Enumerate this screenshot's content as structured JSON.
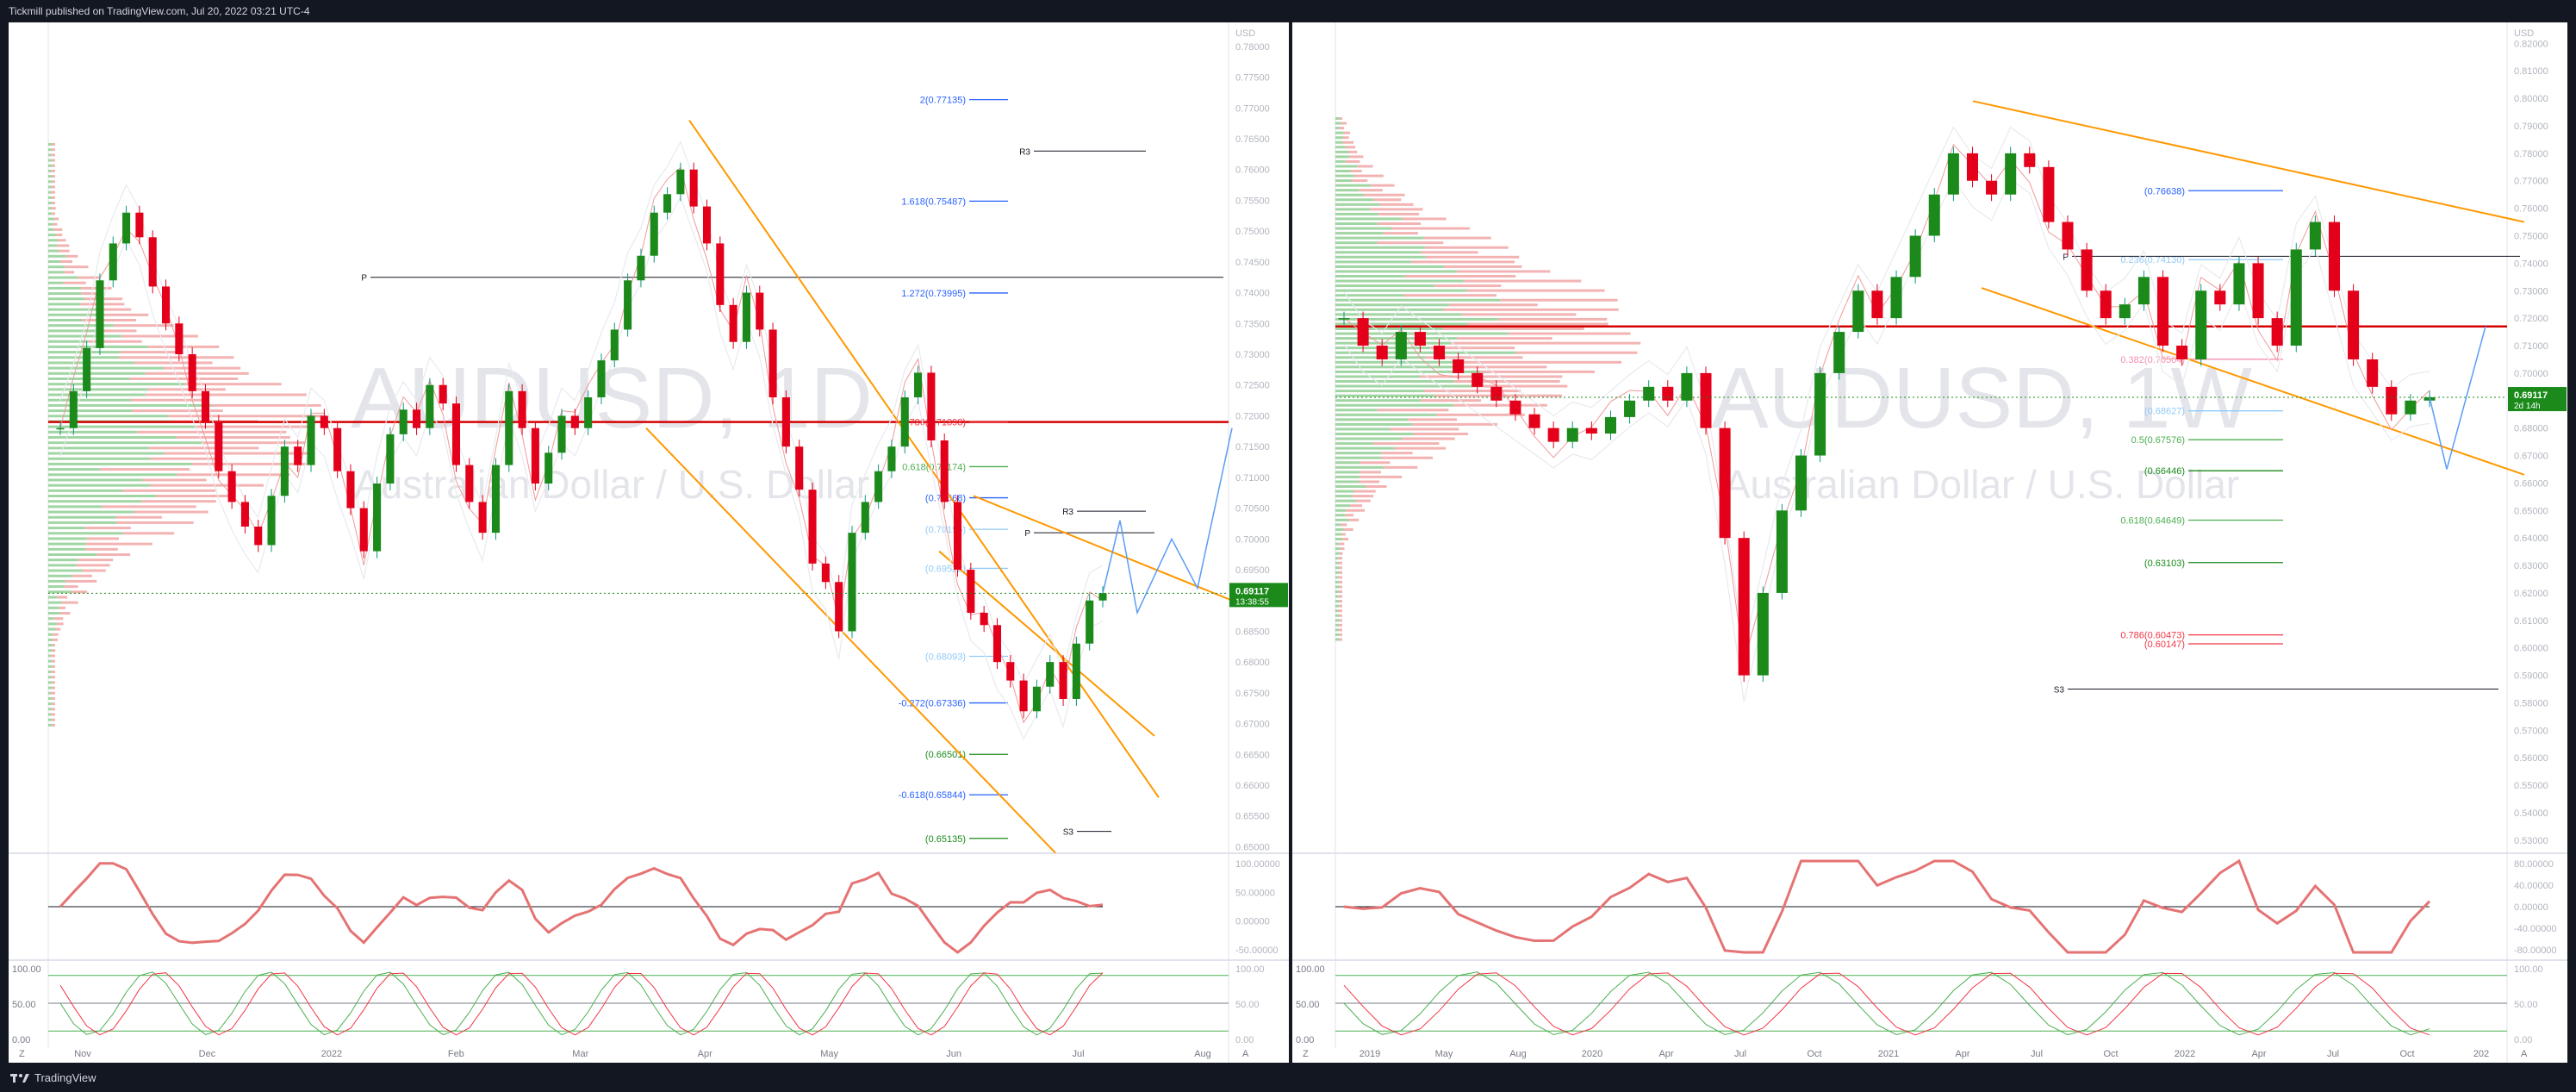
{
  "header": {
    "publisher_text": "Tickmill published on TradingView.com, Jul 20, 2022 03:21 UTC-4"
  },
  "footer": {
    "brand": "TradingView"
  },
  "chart_data": [
    {
      "type": "candlestick",
      "panel": "left",
      "watermark_symbol": "AUDUSD, 1D",
      "watermark_name": "Australian Dollar / U.S. Dollar",
      "currency": "USD",
      "y_ticks": [
        "0.78000",
        "0.77500",
        "0.77000",
        "0.76500",
        "0.76000",
        "0.75500",
        "0.75000",
        "0.74500",
        "0.74000",
        "0.73500",
        "0.73000",
        "0.72500",
        "0.72000",
        "0.71500",
        "0.71000",
        "0.70500",
        "0.70000",
        "0.69500",
        "0.69000",
        "0.68500",
        "0.68000",
        "0.67500",
        "0.67000",
        "0.66500",
        "0.66000",
        "0.65500",
        "0.65000"
      ],
      "ylim": [
        0.6495,
        0.7825
      ],
      "x_ticks": [
        "Nov",
        "Dec",
        "2022",
        "Feb",
        "Mar",
        "Apr",
        "May",
        "Jun",
        "Jul",
        "Aug"
      ],
      "last_price": "0.69117",
      "countdown": "13:38:55",
      "fib_levels": [
        {
          "label": "2(0.77135)",
          "value": 0.77135,
          "color": "#2962ff"
        },
        {
          "label": "1.618(0.75487)",
          "value": 0.75487,
          "color": "#2962ff"
        },
        {
          "label": "1.272(0.73995)",
          "value": 0.73995,
          "color": "#2962ff"
        },
        {
          "label": "0.786(0.71898)",
          "value": 0.71898,
          "color": "#f23645"
        },
        {
          "label": "0.618(0.71174)",
          "value": 0.71174,
          "color": "#4caf50"
        },
        {
          "label": "(0.70668)",
          "value": 0.70668,
          "color": "#2962ff"
        },
        {
          "label": "(0.70156)",
          "value": 0.70156,
          "color": "#90caf9"
        },
        {
          "label": "(0.69522)",
          "value": 0.69522,
          "color": "#90caf9"
        },
        {
          "label": "(0.68093)",
          "value": 0.68093,
          "color": "#90caf9"
        },
        {
          "label": "-0.272(0.67336)",
          "value": 0.67336,
          "color": "#2962ff"
        },
        {
          "label": "(0.66501)",
          "value": 0.66501,
          "color": "#1b8a1b"
        },
        {
          "label": "-0.618(0.65844)",
          "value": 0.65844,
          "color": "#2962ff"
        },
        {
          "label": "(0.65135)",
          "value": 0.65135,
          "color": "#1b8a1b"
        }
      ],
      "pivots": [
        {
          "label": "R3",
          "value": 0.763
        },
        {
          "label": "P",
          "value": 0.7425
        },
        {
          "label": "R3",
          "value": 0.7045
        },
        {
          "label": "P",
          "value": 0.701
        },
        {
          "label": "S3",
          "value": 0.6525
        }
      ],
      "key_level": 0.719,
      "rsi_ticks": [
        "100.00000",
        "50.00000",
        "0.00000",
        "-50.00000"
      ],
      "stoch_ticks": [
        "100.00",
        "50.00",
        "0.00"
      ]
    },
    {
      "type": "candlestick",
      "panel": "right",
      "watermark_symbol": "AUDUSD, 1W",
      "watermark_name": "Australian Dollar / U.S. Dollar",
      "currency": "USD",
      "y_ticks": [
        "0.82000",
        "0.81000",
        "0.80000",
        "0.79000",
        "0.78000",
        "0.77000",
        "0.76000",
        "0.75000",
        "0.74000",
        "0.73000",
        "0.72000",
        "0.71000",
        "0.70000",
        "0.69000",
        "0.68000",
        "0.67000",
        "0.66000",
        "0.65000",
        "0.64000",
        "0.63000",
        "0.62000",
        "0.61000",
        "0.60000",
        "0.59000",
        "0.58000",
        "0.57000",
        "0.56000",
        "0.55000",
        "0.54000",
        "0.53000"
      ],
      "ylim": [
        0.5265,
        0.8245
      ],
      "x_ticks": [
        "2019",
        "May",
        "Aug",
        "2020",
        "Apr",
        "Jul",
        "Oct",
        "2021",
        "Apr",
        "Jul",
        "Oct",
        "2022",
        "Apr",
        "Jul",
        "Oct",
        "202"
      ],
      "last_price": "0.69117",
      "countdown": "2d 14h",
      "fib_levels": [
        {
          "label": "(0.76638)",
          "value": 0.76638,
          "color": "#2962ff"
        },
        {
          "label": "0.236(0.74130)",
          "value": 0.7413,
          "color": "#90caf9"
        },
        {
          "label": "0.382(0.70504)",
          "value": 0.70504,
          "color": "#f48fb1"
        },
        {
          "label": "(0.68627)",
          "value": 0.68627,
          "color": "#90caf9"
        },
        {
          "label": "0.5(0.67576)",
          "value": 0.67576,
          "color": "#4caf50"
        },
        {
          "label": "(0.66446)",
          "value": 0.66446,
          "color": "#1b8a1b"
        },
        {
          "label": "0.618(0.64649)",
          "value": 0.64649,
          "color": "#4caf50"
        },
        {
          "label": "(0.63103)",
          "value": 0.63103,
          "color": "#1b8a1b"
        },
        {
          "label": "0.786(0.60473)",
          "value": 0.60473,
          "color": "#f23645"
        },
        {
          "label": "(0.60147)",
          "value": 0.60147,
          "color": "#f23645"
        }
      ],
      "pivots": [
        {
          "label": "P",
          "value": 0.7425
        },
        {
          "label": "S3",
          "value": 0.585
        }
      ],
      "key_level": 0.717,
      "rsi_ticks": [
        "80.00000",
        "40.00000",
        "0.00000",
        "-40.00000",
        "-80.00000"
      ],
      "stoch_ticks": [
        "100.00",
        "50.00",
        "0.00"
      ]
    }
  ],
  "left_series": [
    0.718,
    0.724,
    0.731,
    0.742,
    0.748,
    0.753,
    0.749,
    0.741,
    0.735,
    0.73,
    0.724,
    0.719,
    0.711,
    0.706,
    0.702,
    0.699,
    0.707,
    0.715,
    0.712,
    0.72,
    0.718,
    0.711,
    0.705,
    0.698,
    0.709,
    0.717,
    0.721,
    0.718,
    0.725,
    0.722,
    0.712,
    0.706,
    0.701,
    0.712,
    0.724,
    0.718,
    0.709,
    0.714,
    0.72,
    0.718,
    0.723,
    0.729,
    0.734,
    0.742,
    0.746,
    0.753,
    0.756,
    0.76,
    0.754,
    0.748,
    0.738,
    0.732,
    0.74,
    0.734,
    0.723,
    0.715,
    0.708,
    0.696,
    0.693,
    0.685,
    0.701,
    0.706,
    0.711,
    0.715,
    0.723,
    0.727,
    0.716,
    0.706,
    0.695,
    0.688,
    0.686,
    0.68,
    0.677,
    0.672,
    0.676,
    0.68,
    0.674,
    0.683,
    0.69,
    0.6912
  ],
  "right_series": [
    0.72,
    0.71,
    0.705,
    0.715,
    0.71,
    0.705,
    0.7,
    0.695,
    0.69,
    0.685,
    0.68,
    0.675,
    0.68,
    0.678,
    0.684,
    0.69,
    0.695,
    0.69,
    0.7,
    0.68,
    0.64,
    0.59,
    0.62,
    0.65,
    0.67,
    0.7,
    0.715,
    0.73,
    0.72,
    0.735,
    0.75,
    0.765,
    0.78,
    0.77,
    0.765,
    0.78,
    0.775,
    0.755,
    0.745,
    0.73,
    0.72,
    0.725,
    0.735,
    0.71,
    0.705,
    0.73,
    0.725,
    0.74,
    0.72,
    0.71,
    0.745,
    0.755,
    0.73,
    0.705,
    0.695,
    0.685,
    0.69,
    0.6912
  ],
  "labels": {
    "axis_z": "Z",
    "axis_a": "A"
  }
}
